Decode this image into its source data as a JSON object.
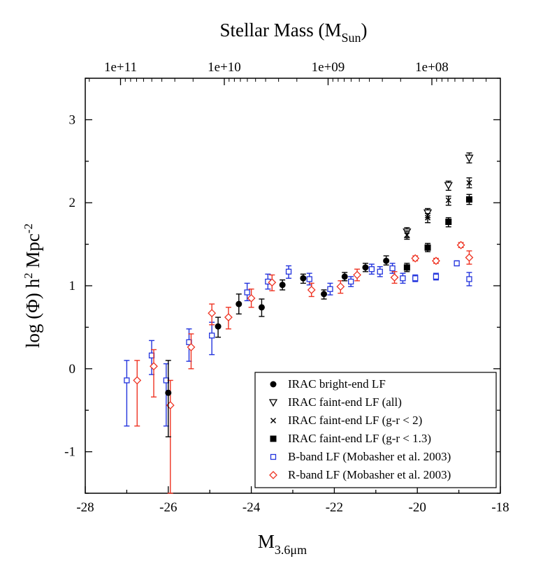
{
  "chart_data": {
    "type": "scatter",
    "title": "",
    "xlabel": "M",
    "xlabel_sub": "3.6μm",
    "ylabel": "log (Φ)  h",
    "ylabel_sup1": "2",
    "ylabel_mid": " Mpc",
    "ylabel_sup2": "-2",
    "top_label": "Stellar Mass (M",
    "top_label_sub": "Sun",
    "top_label_end": ")",
    "xlim": [
      -28,
      -18
    ],
    "ylim": [
      -1.5,
      3.5
    ],
    "x_ticks": [
      -28,
      -26,
      -24,
      -22,
      -20,
      -18
    ],
    "x_tick_labels": [
      "-28",
      "-26",
      "-24",
      "-22",
      "-20",
      "-18"
    ],
    "y_ticks": [
      -1,
      0,
      1,
      2,
      3
    ],
    "y_tick_labels": [
      "-1",
      "0",
      "1",
      "2",
      "3"
    ],
    "top_ticks": [
      -27.15,
      -24.65,
      -22.15,
      -19.65
    ],
    "top_tick_labels": [
      "1e+11",
      "1e+10",
      "1e+09",
      "1e+08"
    ],
    "grid": false,
    "legend_position": "bottom-right",
    "series": [
      {
        "name": "IRAC bright-end LF",
        "marker": "filled-circle",
        "color": "#000000",
        "points": [
          {
            "x": -26.0,
            "y": -0.29,
            "lo": -0.82,
            "hi": 0.1
          },
          {
            "x": -24.8,
            "y": 0.51,
            "lo": 0.38,
            "hi": 0.62
          },
          {
            "x": -24.3,
            "y": 0.78,
            "lo": 0.66,
            "hi": 0.9
          },
          {
            "x": -23.75,
            "y": 0.74,
            "lo": 0.63,
            "hi": 0.84
          },
          {
            "x": -23.25,
            "y": 1.01,
            "lo": 0.95,
            "hi": 1.07
          },
          {
            "x": -22.75,
            "y": 1.09,
            "lo": 1.03,
            "hi": 1.14
          },
          {
            "x": -22.25,
            "y": 0.9,
            "lo": 0.84,
            "hi": 0.95
          },
          {
            "x": -21.75,
            "y": 1.11,
            "lo": 1.06,
            "hi": 1.16
          },
          {
            "x": -21.25,
            "y": 1.22,
            "lo": 1.17,
            "hi": 1.27
          },
          {
            "x": -20.75,
            "y": 1.3,
            "lo": 1.25,
            "hi": 1.36
          }
        ]
      },
      {
        "name": "IRAC faint-end LF (all)",
        "marker": "open-triangle-down",
        "color": "#000000",
        "points": [
          {
            "x": -20.25,
            "y": 1.65,
            "lo": 1.58,
            "hi": 1.7
          },
          {
            "x": -19.75,
            "y": 1.88,
            "lo": 1.82,
            "hi": 1.93
          },
          {
            "x": -19.25,
            "y": 2.21,
            "lo": 2.15,
            "hi": 2.26
          },
          {
            "x": -18.75,
            "y": 2.54,
            "lo": 2.48,
            "hi": 2.6
          }
        ]
      },
      {
        "name": "IRAC faint-end LF (g-r < 2)",
        "marker": "cross",
        "color": "#000000",
        "points": [
          {
            "x": -20.25,
            "y": 1.61,
            "lo": 1.56,
            "hi": 1.66
          },
          {
            "x": -19.75,
            "y": 1.82,
            "lo": 1.76,
            "hi": 1.87
          },
          {
            "x": -19.25,
            "y": 2.03,
            "lo": 1.97,
            "hi": 2.08
          },
          {
            "x": -18.75,
            "y": 2.24,
            "lo": 2.18,
            "hi": 2.3
          }
        ]
      },
      {
        "name": "IRAC faint-end LF (g-r < 1.3)",
        "marker": "filled-square",
        "color": "#000000",
        "points": [
          {
            "x": -20.25,
            "y": 1.22,
            "lo": 1.17,
            "hi": 1.27
          },
          {
            "x": -19.75,
            "y": 1.46,
            "lo": 1.41,
            "hi": 1.51
          },
          {
            "x": -19.25,
            "y": 1.77,
            "lo": 1.71,
            "hi": 1.82
          },
          {
            "x": -18.75,
            "y": 2.04,
            "lo": 1.98,
            "hi": 2.1
          }
        ]
      },
      {
        "name": "B-band LF (Mobasher et al. 2003)",
        "marker": "open-square",
        "color": "#2233dd",
        "points": [
          {
            "x": -27.0,
            "y": -0.14,
            "lo": -0.69,
            "hi": 0.1
          },
          {
            "x": -26.4,
            "y": 0.16,
            "lo": -0.07,
            "hi": 0.34
          },
          {
            "x": -26.05,
            "y": -0.14,
            "lo": -0.69,
            "hi": 0.06
          },
          {
            "x": -25.5,
            "y": 0.32,
            "lo": 0.09,
            "hi": 0.48
          },
          {
            "x": -24.95,
            "y": 0.4,
            "lo": 0.17,
            "hi": 0.56
          },
          {
            "x": -24.1,
            "y": 0.92,
            "lo": 0.82,
            "hi": 1.03
          },
          {
            "x": -23.6,
            "y": 1.05,
            "lo": 0.96,
            "hi": 1.14
          },
          {
            "x": -23.1,
            "y": 1.17,
            "lo": 1.09,
            "hi": 1.24
          },
          {
            "x": -22.6,
            "y": 1.08,
            "lo": 1.01,
            "hi": 1.15
          },
          {
            "x": -22.1,
            "y": 0.96,
            "lo": 0.89,
            "hi": 1.03
          },
          {
            "x": -21.6,
            "y": 1.05,
            "lo": 0.99,
            "hi": 1.11
          },
          {
            "x": -21.1,
            "y": 1.2,
            "lo": 1.14,
            "hi": 1.26
          },
          {
            "x": -20.9,
            "y": 1.17,
            "lo": 1.11,
            "hi": 1.23
          },
          {
            "x": -20.6,
            "y": 1.21,
            "lo": 1.15,
            "hi": 1.27
          },
          {
            "x": -20.35,
            "y": 1.09,
            "lo": 1.03,
            "hi": 1.15
          },
          {
            "x": -20.05,
            "y": 1.09,
            "lo": 1.05,
            "hi": 1.13
          },
          {
            "x": -19.55,
            "y": 1.11,
            "lo": 1.07,
            "hi": 1.15
          },
          {
            "x": -19.05,
            "y": 1.27,
            "lo": 1.24,
            "hi": 1.3
          },
          {
            "x": -18.75,
            "y": 1.08,
            "lo": 1.0,
            "hi": 1.16
          }
        ]
      },
      {
        "name": "R-band LF (Mobasher et al. 2003)",
        "marker": "open-diamond",
        "color": "#ee3322",
        "points": [
          {
            "x": -26.75,
            "y": -0.14,
            "lo": -0.69,
            "hi": 0.1
          },
          {
            "x": -26.35,
            "y": 0.03,
            "lo": -0.34,
            "hi": 0.23
          },
          {
            "x": -25.95,
            "y": -0.44,
            "lo": -1.5,
            "hi": -0.14
          },
          {
            "x": -25.45,
            "y": 0.26,
            "lo": 0.0,
            "hi": 0.42
          },
          {
            "x": -24.95,
            "y": 0.67,
            "lo": 0.53,
            "hi": 0.78
          },
          {
            "x": -24.55,
            "y": 0.62,
            "lo": 0.48,
            "hi": 0.74
          },
          {
            "x": -24.0,
            "y": 0.85,
            "lo": 0.74,
            "hi": 0.96
          },
          {
            "x": -23.5,
            "y": 1.04,
            "lo": 0.94,
            "hi": 1.13
          },
          {
            "x": -22.55,
            "y": 0.95,
            "lo": 0.87,
            "hi": 1.03
          },
          {
            "x": -21.85,
            "y": 0.99,
            "lo": 0.91,
            "hi": 1.06
          },
          {
            "x": -21.45,
            "y": 1.13,
            "lo": 1.06,
            "hi": 1.2
          },
          {
            "x": -20.55,
            "y": 1.1,
            "lo": 1.03,
            "hi": 1.17
          },
          {
            "x": -20.05,
            "y": 1.33,
            "lo": 1.3,
            "hi": 1.36
          },
          {
            "x": -19.55,
            "y": 1.3,
            "lo": 1.27,
            "hi": 1.33
          },
          {
            "x": -18.95,
            "y": 1.49,
            "lo": 1.46,
            "hi": 1.52
          },
          {
            "x": -18.75,
            "y": 1.34,
            "lo": 1.26,
            "hi": 1.42
          }
        ]
      }
    ]
  }
}
